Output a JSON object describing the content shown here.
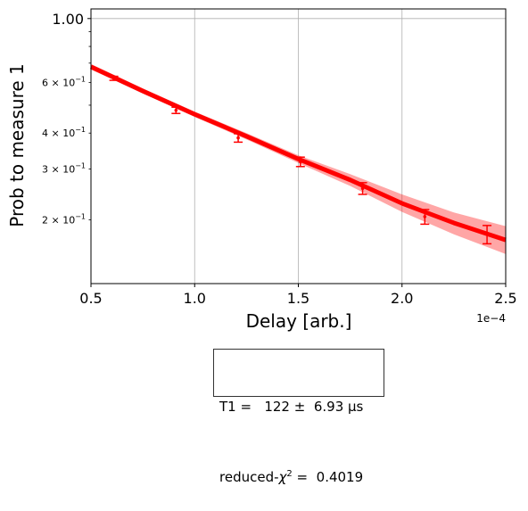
{
  "chart_data": {
    "type": "line",
    "title": "",
    "xlabel": "Delay [arb.]",
    "ylabel": "Prob to measure 1",
    "x_offset_label": "1e−4",
    "xscale": "linear",
    "yscale": "log",
    "xlim": [
      5e-05,
      0.00025
    ],
    "ylim": [
      0.12,
      1.08
    ],
    "grid": "x-major + y at 1.00",
    "x_ticks": [
      {
        "value": 5e-05,
        "label": "0.5"
      },
      {
        "value": 0.0001,
        "label": "1.0"
      },
      {
        "value": 0.00015,
        "label": "1.5"
      },
      {
        "value": 0.0002,
        "label": "2.0"
      },
      {
        "value": 0.00025,
        "label": "2.5"
      }
    ],
    "y_major_ticks": [
      {
        "value": 1.0,
        "label": "1.00"
      }
    ],
    "y_minor_ticks": [
      {
        "value": 0.2,
        "base": "2",
        "label": "2 × 10",
        "exp": "−1"
      },
      {
        "value": 0.3,
        "base": "3",
        "label": "3 × 10",
        "exp": "−1"
      },
      {
        "value": 0.4,
        "base": "4",
        "label": "4 × 10",
        "exp": "−1"
      },
      {
        "value": 0.6,
        "base": "6",
        "label": "6 × 10",
        "exp": "−1"
      }
    ],
    "y_unlabeled_minor_ticks": [
      0.5,
      0.7,
      0.8,
      0.9
    ],
    "series": [
      {
        "kind": "scatter_errorbar",
        "color": "#ff0000",
        "x": [
          6.1e-05,
          9.1e-05,
          0.000121,
          0.000151,
          0.000181,
          0.000211,
          0.000241
        ],
        "y": [
          0.62,
          0.48,
          0.385,
          0.318,
          0.257,
          0.205,
          0.178
        ],
        "yerr": [
          0.01,
          0.012,
          0.013,
          0.012,
          0.012,
          0.012,
          0.013
        ]
      },
      {
        "kind": "fit_line",
        "color": "#ff0000",
        "x": [
          5e-05,
          7.5e-05,
          0.0001,
          0.000125,
          0.00015,
          0.000175,
          0.0002,
          0.000225,
          0.00025
        ],
        "y": [
          0.68,
          0.56,
          0.465,
          0.39,
          0.325,
          0.275,
          0.228,
          0.195,
          0.17
        ]
      },
      {
        "kind": "confidence_band",
        "color": "#ff0000",
        "x": [
          5e-05,
          7.5e-05,
          0.0001,
          0.000125,
          0.00015,
          0.000175,
          0.0002,
          0.000225,
          0.00025
        ],
        "lower": [
          0.665,
          0.55,
          0.455,
          0.38,
          0.315,
          0.262,
          0.213,
          0.178,
          0.152
        ],
        "upper": [
          0.695,
          0.572,
          0.475,
          0.4,
          0.335,
          0.288,
          0.245,
          0.212,
          0.19
        ]
      }
    ],
    "annotation": {
      "line1": "T1 =   122 ±  6.93 µs",
      "line2_prefix": "reduced-",
      "line2_chi": "χ",
      "line2_sup": "2",
      "line2_suffix": " =  0.4019"
    }
  }
}
